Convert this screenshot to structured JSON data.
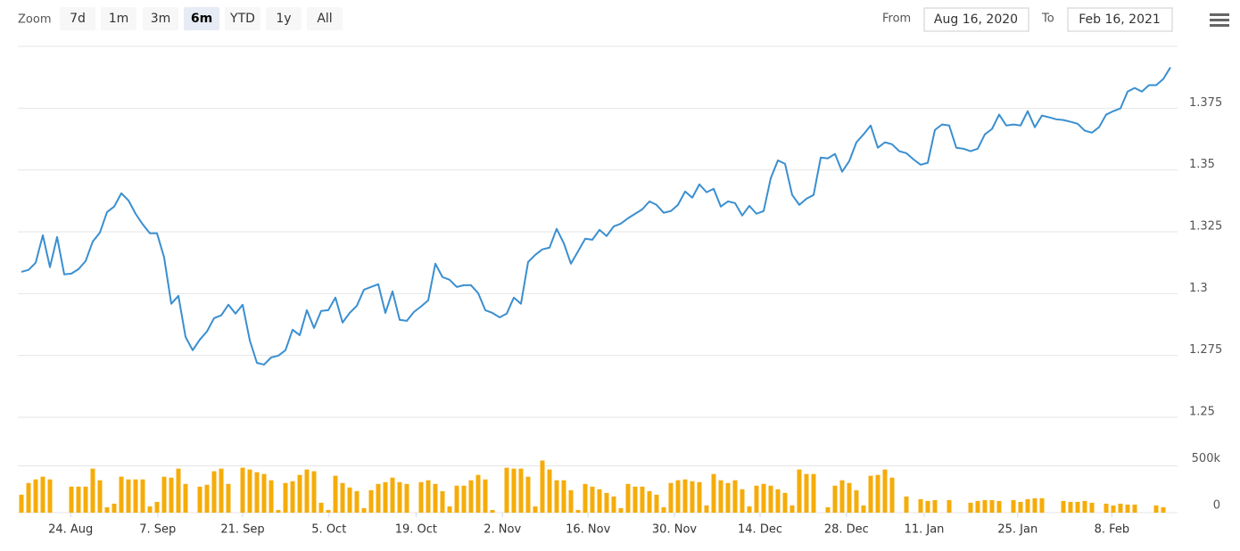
{
  "range_selector": {
    "label": "Zoom",
    "buttons": [
      "7d",
      "1m",
      "3m",
      "6m",
      "YTD",
      "1y",
      "All"
    ],
    "selected": 3,
    "from_label": "From",
    "from": "Aug 16, 2020",
    "to_label": "To",
    "to": "Feb 16, 2021"
  },
  "chart_data": {
    "type": "line",
    "x": [
      3,
      4,
      5,
      6,
      7,
      8,
      9,
      10,
      11,
      12,
      13,
      14,
      15,
      16,
      17,
      18,
      19,
      20,
      21,
      22,
      23,
      24,
      25,
      26,
      27,
      28,
      29,
      30,
      31,
      32,
      33,
      34,
      35,
      36,
      37,
      38,
      39,
      40,
      41,
      42,
      43,
      44,
      45,
      46,
      47,
      48,
      49,
      50,
      51,
      52,
      53,
      54,
      55,
      56,
      57,
      58,
      59,
      60,
      61,
      62,
      63,
      64,
      65,
      66,
      67,
      68,
      69,
      70,
      71,
      72,
      73,
      74,
      75,
      76,
      77,
      78,
      79,
      80,
      81,
      82,
      83,
      84,
      85,
      86,
      87,
      88,
      89,
      90,
      91,
      92,
      93,
      94,
      95,
      96,
      97,
      98,
      99,
      100,
      101,
      102,
      103,
      104,
      105,
      106,
      107,
      108,
      109,
      110,
      111,
      112,
      113,
      114,
      115,
      116,
      117,
      118,
      119,
      120,
      121,
      122,
      123,
      124,
      125,
      126,
      127,
      128,
      129,
      130,
      131,
      132,
      133,
      134,
      135,
      136,
      137,
      138,
      139,
      140,
      141,
      142,
      143,
      144,
      145,
      146,
      147,
      148,
      149,
      150,
      151,
      152,
      153,
      154,
      155,
      156,
      157,
      158,
      159,
      160,
      161,
      162,
      163,
      164
    ],
    "series": [
      {
        "color": "#3a8fd0",
        "values": [
          1.3088,
          1.3096,
          1.3125,
          1.3236,
          1.3107,
          1.3229,
          1.3078,
          1.3081,
          1.3099,
          1.3132,
          1.3211,
          1.3247,
          1.333,
          1.3352,
          1.3406,
          1.3377,
          1.3323,
          1.328,
          1.3244,
          1.3244,
          1.3146,
          1.2959,
          1.2991,
          1.2825,
          1.2771,
          1.2814,
          1.2847,
          1.2901,
          1.2912,
          1.2955,
          1.2919,
          1.2955,
          1.2811,
          1.272,
          1.2713,
          1.2742,
          1.2749,
          1.2771,
          1.2854,
          1.2832,
          1.2933,
          1.2861,
          1.293,
          1.2933,
          1.2984,
          1.2883,
          1.2922,
          1.2951,
          1.3016,
          1.3027,
          1.3038,
          1.2922,
          1.3009,
          1.2894,
          1.289,
          1.2926,
          1.2948,
          1.2973,
          1.3121,
          1.3067,
          1.3056,
          1.3027,
          1.3034,
          1.3034,
          1.3002,
          1.2933,
          1.2922,
          1.2904,
          1.2919,
          1.2984,
          1.2959,
          1.3128,
          1.3157,
          1.3179,
          1.3186,
          1.3262,
          1.3204,
          1.3121,
          1.3171,
          1.3222,
          1.3218,
          1.3258,
          1.3233,
          1.3272,
          1.3283,
          1.3305,
          1.3323,
          1.3341,
          1.3373,
          1.3359,
          1.3327,
          1.3334,
          1.3359,
          1.3413,
          1.3388,
          1.3442,
          1.341,
          1.3424,
          1.3352,
          1.3373,
          1.3366,
          1.3316,
          1.3355,
          1.3323,
          1.3334,
          1.3467,
          1.3539,
          1.3525,
          1.3399,
          1.3359,
          1.3384,
          1.3399,
          1.355,
          1.3547,
          1.3565,
          1.3493,
          1.3536,
          1.3612,
          1.3644,
          1.368,
          1.359,
          1.3612,
          1.3604,
          1.3576,
          1.3568,
          1.3543,
          1.3521,
          1.3529,
          1.3662,
          1.3684,
          1.368,
          1.359,
          1.3586,
          1.3576,
          1.3586,
          1.3644,
          1.3666,
          1.3724,
          1.368,
          1.3684,
          1.368,
          1.3738,
          1.3673,
          1.372,
          1.3713,
          1.3705,
          1.3702,
          1.3695,
          1.3687,
          1.3659,
          1.3651,
          1.3673,
          1.3724,
          1.3738,
          1.3749,
          1.3817,
          1.3832,
          1.3817,
          1.3843,
          1.3843,
          1.3868,
          1.3915
        ]
      },
      {
        "type": "bar",
        "axis": "y2",
        "color": "#f5ac0a",
        "values": [
          192000,
          317000,
          355000,
          384000,
          355000,
          null,
          null,
          278000,
          278000,
          278000,
          470000,
          346000,
          58000,
          96000,
          384000,
          355000,
          355000,
          355000,
          67000,
          115000,
          384000,
          374000,
          470000,
          307000,
          null,
          278000,
          298000,
          442000,
          470000,
          307000,
          null,
          480000,
          461000,
          432000,
          413000,
          346000,
          29000,
          317000,
          336000,
          403000,
          461000,
          442000,
          106000,
          29000,
          394000,
          317000,
          269000,
          230000,
          48000,
          240000,
          307000,
          326000,
          374000,
          326000,
          307000,
          null,
          326000,
          346000,
          307000,
          230000,
          67000,
          288000,
          288000,
          346000,
          403000,
          355000,
          29000,
          null,
          480000,
          470000,
          470000,
          384000,
          67000,
          557000,
          461000,
          346000,
          346000,
          240000,
          29000,
          307000,
          278000,
          250000,
          211000,
          173000,
          48000,
          307000,
          278000,
          278000,
          230000,
          192000,
          58000,
          317000,
          346000,
          355000,
          336000,
          326000,
          77000,
          413000,
          346000,
          317000,
          346000,
          250000,
          67000,
          288000,
          307000,
          288000,
          250000,
          211000,
          77000,
          461000,
          413000,
          413000,
          null,
          58000,
          288000,
          346000,
          317000,
          240000,
          77000,
          394000,
          403000,
          461000,
          374000,
          null,
          173000,
          null,
          144000,
          125000,
          134000,
          null,
          134000,
          null,
          null,
          106000,
          125000,
          134000,
          134000,
          125000,
          null,
          134000,
          115000,
          144000,
          154000,
          154000,
          null,
          null,
          125000,
          115000,
          115000,
          125000,
          106000,
          null,
          96000,
          77000,
          96000,
          86000,
          86000,
          null,
          null,
          77000,
          58000,
          null
        ]
      }
    ],
    "xlim": [
      2.5,
      165
    ],
    "xticks": [
      {
        "value": 9.9,
        "label": "24. Aug"
      },
      {
        "value": 22.1,
        "label": "7. Sep"
      },
      {
        "value": 34,
        "label": "21. Sep"
      },
      {
        "value": 46.1,
        "label": "5. Oct"
      },
      {
        "value": 58.3,
        "label": "19. Oct"
      },
      {
        "value": 70.4,
        "label": "2. Nov"
      },
      {
        "value": 82.4,
        "label": "16. Nov"
      },
      {
        "value": 94.5,
        "label": "30. Nov"
      },
      {
        "value": 106.5,
        "label": "14. Dec"
      },
      {
        "value": 118.6,
        "label": "28. Dec"
      },
      {
        "value": 129.5,
        "label": "11. Jan"
      },
      {
        "value": 142.6,
        "label": "25. Jan"
      },
      {
        "value": 155.8,
        "label": "8. Feb"
      }
    ],
    "ylim": [
      1.25,
      1.4
    ],
    "yticks": [
      1.25,
      1.275,
      1.3,
      1.325,
      1.35,
      1.375
    ],
    "y2lim": [
      0,
      1000000
    ],
    "y2ticks": [
      0,
      {
        "value": 500000,
        "label": "500k"
      }
    ],
    "grid": true
  }
}
